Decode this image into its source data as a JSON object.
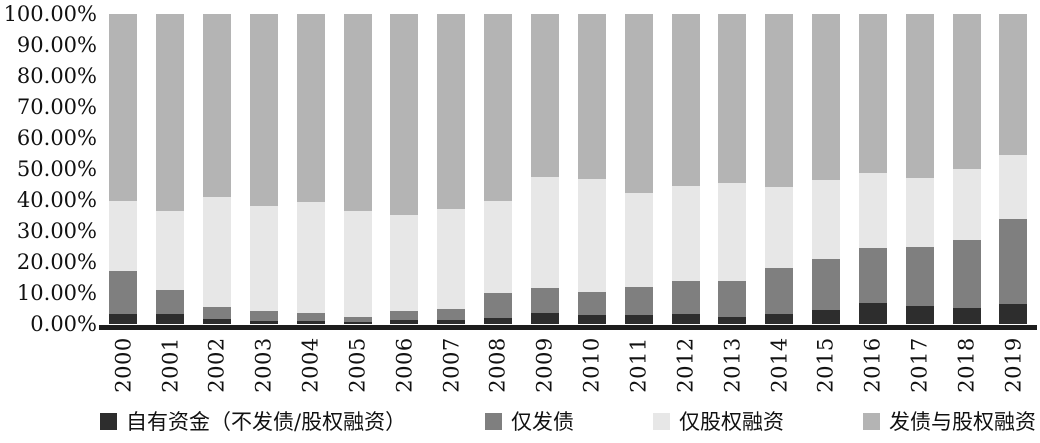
{
  "chart_data": {
    "type": "bar",
    "stacked": true,
    "percent_stacked": true,
    "title": "",
    "xlabel": "",
    "ylabel": "",
    "ylim": [
      0,
      100
    ],
    "grid": false,
    "legend_position": "bottom",
    "ytick_labels_top_to_bottom": [
      "100.00%",
      "90.00%",
      "80.00%",
      "70.00%",
      "60.00%",
      "50.00%",
      "40.00%",
      "30.00%",
      "20.00%",
      "10.00%",
      "0.00%"
    ],
    "categories": [
      "2000",
      "2001",
      "2002",
      "2003",
      "2004",
      "2005",
      "2006",
      "2007",
      "2008",
      "2009",
      "2010",
      "2011",
      "2012",
      "2013",
      "2014",
      "2015",
      "2016",
      "2017",
      "2018",
      "2019"
    ],
    "series": [
      {
        "name": "自有资金（不发债/股权融资）",
        "color": "#2d2d2d",
        "values": [
          3.2,
          3.2,
          1.6,
          1.0,
          1.0,
          0.6,
          1.3,
          1.3,
          1.9,
          3.5,
          2.9,
          2.9,
          3.2,
          2.2,
          3.2,
          4.5,
          6.7,
          5.8,
          5.2,
          6.5
        ]
      },
      {
        "name": "仅发债",
        "color": "#7f7f7f",
        "values": [
          13.9,
          7.8,
          3.9,
          3.2,
          2.5,
          1.7,
          2.9,
          3.5,
          8.1,
          8.1,
          7.4,
          9.0,
          10.7,
          11.7,
          14.9,
          16.5,
          17.8,
          19.0,
          21.9,
          27.4
        ]
      },
      {
        "name": "仅股权融资",
        "color": "#e7e7e7",
        "values": [
          22.6,
          25.5,
          35.5,
          33.9,
          35.9,
          34.2,
          31.0,
          32.3,
          29.7,
          35.8,
          36.5,
          30.4,
          30.6,
          31.6,
          26.1,
          25.5,
          24.2,
          22.3,
          22.9,
          20.6
        ]
      },
      {
        "name": "发债与股权融资",
        "color": "#b4b4b4",
        "values": [
          60.3,
          63.5,
          59.0,
          61.9,
          60.6,
          63.5,
          64.8,
          62.9,
          60.3,
          52.6,
          53.2,
          57.7,
          55.5,
          54.5,
          55.8,
          53.5,
          51.3,
          52.9,
          50.0,
          45.5
        ]
      }
    ],
    "axis_color": "#1d1d1d",
    "background_color": "#ffffff"
  }
}
